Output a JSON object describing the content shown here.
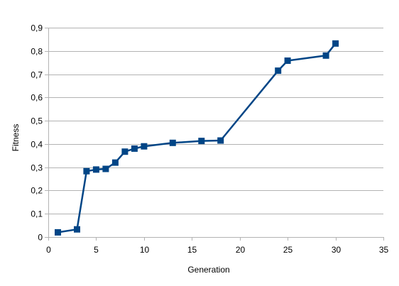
{
  "chart_data": {
    "type": "line",
    "title": "",
    "xlabel": "Generation",
    "ylabel": "Fitness",
    "xlim": [
      0,
      35
    ],
    "ylim": [
      0,
      0.9
    ],
    "x_ticks": [
      0,
      5,
      10,
      15,
      20,
      25,
      30,
      35
    ],
    "x_tick_labels": [
      "0",
      "5",
      "10",
      "15",
      "20",
      "25",
      "30",
      "35"
    ],
    "y_ticks": [
      0,
      0.1,
      0.2,
      0.3,
      0.4,
      0.5,
      0.6,
      0.7,
      0.8,
      0.9
    ],
    "y_tick_labels": [
      "0",
      "0,1",
      "0,2",
      "0,3",
      "0,4",
      "0,5",
      "0,6",
      "0,7",
      "0,8",
      "0,9"
    ],
    "grid": "horizontal",
    "legend": "none",
    "marker": "square",
    "series_color": "#004586",
    "grid_color": "#b3b3b3",
    "series": [
      {
        "x": [
          1,
          3,
          4,
          5,
          6,
          7,
          8,
          9,
          10,
          13,
          16,
          18,
          24,
          25,
          29,
          30
        ],
        "y": [
          0.02,
          0.033,
          0.283,
          0.29,
          0.293,
          0.32,
          0.367,
          0.38,
          0.39,
          0.405,
          0.413,
          0.415,
          0.715,
          0.758,
          0.78,
          0.832
        ]
      }
    ]
  }
}
